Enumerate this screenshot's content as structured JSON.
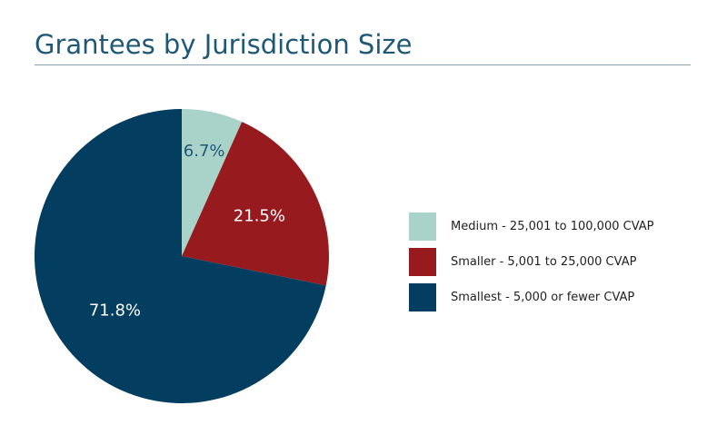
{
  "title": "Grantees by Jurisdiction Size",
  "colors": {
    "title": "#1e5876",
    "medium": "#a9d3c9",
    "smaller": "#971b1e",
    "smallest": "#033d5f"
  },
  "chart_data": {
    "type": "pie",
    "title": "Grantees by Jurisdiction Size",
    "slices": [
      {
        "label": "Medium - 25,001 to 100,000 CVAP",
        "value": 6.7,
        "display": "6.7%",
        "color": "#a9d3c9",
        "label_color": "#1e5876"
      },
      {
        "label": "Smaller - 5,001 to 25,000 CVAP",
        "value": 21.5,
        "display": "21.5%",
        "color": "#971b1e",
        "label_color": "#ffffff"
      },
      {
        "label": "Smallest - 5,000 or fewer CVAP",
        "value": 71.8,
        "display": "71.8%",
        "color": "#033d5f",
        "label_color": "#ffffff"
      }
    ],
    "start": "12 o'clock",
    "direction": "clockwise",
    "legend_position": "right"
  }
}
